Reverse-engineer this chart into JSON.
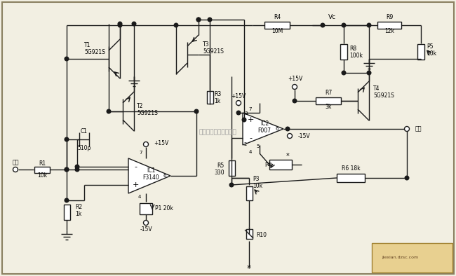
{
  "bg_color": "#f2efe2",
  "line_color": "#1a1a1a",
  "lw": 1.0,
  "border_color": "#8a8060",
  "watermark": "杭州精睵科技有限公司",
  "logo_text": "jiexian.dzsc.com",
  "labels": {
    "input": "输入",
    "output": "输出",
    "R1": "R1",
    "R1v": "10k",
    "R2": "R2",
    "R2v": "1k",
    "R3": "R3",
    "R3v": "1k",
    "R4": "R4",
    "R4v": "10M",
    "R5": "R5",
    "R5v": "330",
    "R6": "R6 18k",
    "R7": "R7",
    "R7v": "3k",
    "R8": "R8",
    "R8v": "100k",
    "R9": "R9",
    "R9v": "12k",
    "R10": "R10",
    "P1": "P1 20k",
    "P3": "P3",
    "P3v": "10k",
    "P4": "P4",
    "P5": "P5",
    "P5v": "10k",
    "C1": "C1",
    "C1v": "510p",
    "T1": "T1",
    "T1v": "5G921S",
    "T2": "T2",
    "T2v": "5G921S",
    "T3": "T3",
    "T3v": "5G921S",
    "T4": "T4",
    "T4v": "5G921S",
    "IC1": "IC1",
    "IC1v": "F3140",
    "IC2": "IC2",
    "IC2v": "F007",
    "plus15": "+15V",
    "minus15": "-15V",
    "Vc": "Vc"
  }
}
